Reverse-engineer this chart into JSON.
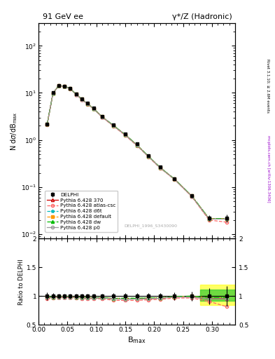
{
  "title_left": "91 GeV ee",
  "title_right": "γ*/Z (Hadronic)",
  "ylabel_main": "N dσ/dB_max",
  "ylabel_ratio": "Ratio to DELPHI",
  "xlabel": "B_max",
  "right_label_top": "Rivet 3.1.10; ≥ 2.6M events",
  "right_label_bottom": "mcplots.cern.ch [arXiv:1306.3436]",
  "watermark": "DELPHI_1996_S3430090",
  "bmax_centers": [
    0.015,
    0.025,
    0.035,
    0.045,
    0.055,
    0.065,
    0.075,
    0.085,
    0.095,
    0.11,
    0.13,
    0.15,
    0.17,
    0.19,
    0.21,
    0.235,
    0.265,
    0.295,
    0.325
  ],
  "delphi_y": [
    2.2,
    10.0,
    14.5,
    14.0,
    12.5,
    9.5,
    7.5,
    6.0,
    4.8,
    3.2,
    2.1,
    1.35,
    0.82,
    0.47,
    0.27,
    0.15,
    0.065,
    0.022,
    0.022
  ],
  "delphi_yerr": [
    0.15,
    0.5,
    0.6,
    0.6,
    0.5,
    0.4,
    0.3,
    0.25,
    0.2,
    0.15,
    0.1,
    0.07,
    0.04,
    0.025,
    0.015,
    0.01,
    0.005,
    0.003,
    0.004
  ],
  "pythia_370_y": [
    2.15,
    9.8,
    14.3,
    13.8,
    12.3,
    9.3,
    7.3,
    5.8,
    4.65,
    3.1,
    2.0,
    1.28,
    0.78,
    0.45,
    0.26,
    0.148,
    0.064,
    0.021,
    0.021
  ],
  "pythia_atl_y": [
    2.1,
    9.7,
    14.2,
    13.7,
    12.2,
    9.2,
    7.2,
    5.75,
    4.6,
    3.05,
    1.95,
    1.25,
    0.76,
    0.44,
    0.255,
    0.145,
    0.063,
    0.02,
    0.018
  ],
  "pythia_d6t_y": [
    2.18,
    9.85,
    14.35,
    13.85,
    12.35,
    9.35,
    7.35,
    5.85,
    4.68,
    3.12,
    2.02,
    1.3,
    0.79,
    0.455,
    0.262,
    0.149,
    0.065,
    0.0215,
    0.0215
  ],
  "pythia_def_y": [
    2.18,
    9.85,
    14.35,
    13.85,
    12.35,
    9.35,
    7.35,
    5.85,
    4.68,
    3.12,
    2.02,
    1.3,
    0.79,
    0.455,
    0.262,
    0.149,
    0.065,
    0.0215,
    0.0215
  ],
  "pythia_dw_y": [
    2.18,
    9.85,
    14.35,
    13.85,
    12.35,
    9.35,
    7.35,
    5.85,
    4.68,
    3.12,
    2.02,
    1.3,
    0.79,
    0.455,
    0.262,
    0.149,
    0.065,
    0.0215,
    0.0215
  ],
  "pythia_p0_y": [
    2.15,
    9.8,
    14.3,
    13.8,
    12.3,
    9.3,
    7.3,
    5.8,
    4.65,
    3.1,
    2.0,
    1.28,
    0.78,
    0.45,
    0.26,
    0.148,
    0.064,
    0.021,
    0.021
  ],
  "color_delphi": "#000000",
  "color_370": "#cc0000",
  "color_atl": "#ff6666",
  "color_d6t": "#00bbbb",
  "color_def": "#ff9900",
  "color_dw": "#00bb00",
  "color_p0": "#999999",
  "xlim": [
    0.0,
    0.34
  ],
  "ylim_main": [
    0.008,
    300
  ],
  "ylim_ratio": [
    0.5,
    2.0
  ],
  "ratio_yticks": [
    0.5,
    1.0,
    1.5,
    2.0
  ],
  "ratio_yticklabels": [
    "0.5",
    "1",
    "1.5",
    "2"
  ]
}
